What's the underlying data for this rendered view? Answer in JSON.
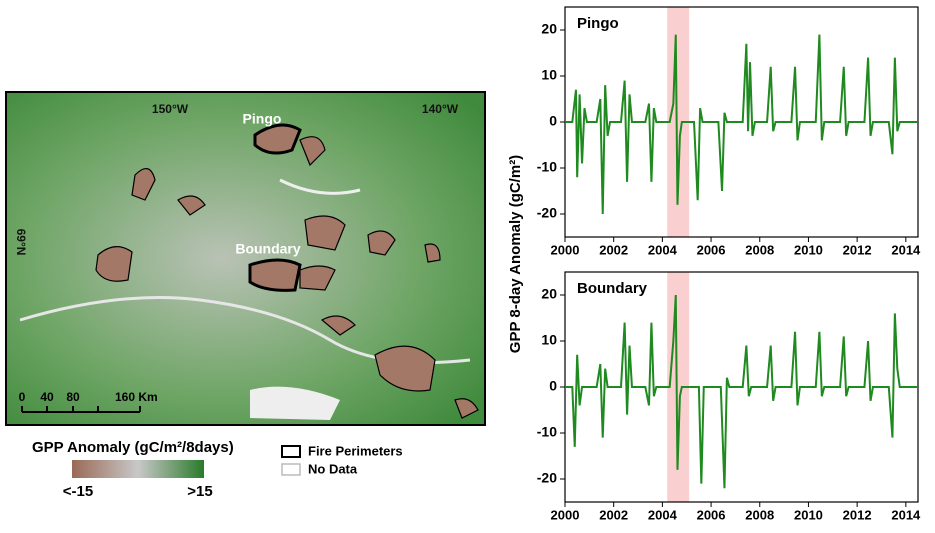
{
  "map": {
    "lon_labels": [
      "150°W",
      "140°W"
    ],
    "lat_label": "69°N",
    "sites": [
      "Pingo",
      "Boundary"
    ],
    "scale_labels": [
      "0",
      "40",
      "80",
      "160 Km"
    ],
    "legend_title": "GPP Anomaly (gC/m²/8days)",
    "colorbar_min": "<-15",
    "colorbar_max": ">15",
    "perimeter_label": "Fire Perimeters",
    "nodata_label": "No Data"
  },
  "chart_data": [
    {
      "type": "line",
      "title": "Pingo",
      "ylabel": "GPP 8-day Anomaly (gC/m²)",
      "xlim": [
        2000,
        2014.5
      ],
      "xticks": [
        2000,
        2002,
        2004,
        2006,
        2008,
        2010,
        2012,
        2014
      ],
      "ylim": [
        -25,
        25
      ],
      "yticks": [
        -20,
        -10,
        0,
        10,
        20
      ],
      "highlight": {
        "x": [
          2004.2,
          2005.1
        ],
        "color": "#f9cfcf"
      },
      "series": [
        {
          "color": "#1f8a1f",
          "x": [
            2000,
            2000.3,
            2000.45,
            2000.5,
            2000.6,
            2000.7,
            2000.8,
            2000.9,
            2001.3,
            2001.45,
            2001.55,
            2001.65,
            2001.75,
            2001.85,
            2002.3,
            2002.45,
            2002.55,
            2002.65,
            2002.75,
            2003.3,
            2003.45,
            2003.55,
            2003.65,
            2003.75,
            2004.3,
            2004.45,
            2004.55,
            2004.62,
            2004.72,
            2004.8,
            2005.3,
            2005.45,
            2005.55,
            2005.65,
            2006.3,
            2006.45,
            2006.55,
            2006.65,
            2007.3,
            2007.45,
            2007.52,
            2007.6,
            2007.7,
            2007.8,
            2008.3,
            2008.45,
            2008.55,
            2008.65,
            2009.3,
            2009.45,
            2009.55,
            2009.65,
            2010.3,
            2010.45,
            2010.55,
            2010.65,
            2011.3,
            2011.45,
            2011.55,
            2011.65,
            2012.3,
            2012.45,
            2012.55,
            2012.65,
            2013.3,
            2013.45,
            2013.55,
            2013.65,
            2013.75,
            2014.5
          ],
          "values": [
            0,
            0,
            7,
            -12,
            6,
            -9,
            3,
            0,
            0,
            5,
            -20,
            8,
            -3,
            0,
            0,
            9,
            -13,
            6,
            0,
            0,
            4,
            -13,
            3,
            0,
            0,
            4,
            19,
            -18,
            -3,
            0,
            0,
            -17,
            3,
            0,
            0,
            -15,
            2,
            0,
            0,
            17,
            -2,
            13,
            -3,
            0,
            0,
            12,
            -2,
            0,
            0,
            12,
            -4,
            0,
            0,
            19,
            -4,
            0,
            0,
            12,
            -3,
            0,
            0,
            14,
            -3,
            0,
            0,
            -7,
            14,
            -2,
            0,
            0
          ]
        }
      ]
    },
    {
      "type": "line",
      "title": "Boundary",
      "xlim": [
        2000,
        2014.5
      ],
      "xticks": [
        2000,
        2002,
        2004,
        2006,
        2008,
        2010,
        2012,
        2014
      ],
      "ylim": [
        -25,
        25
      ],
      "yticks": [
        -20,
        -10,
        0,
        10,
        20
      ],
      "highlight": {
        "x": [
          2004.2,
          2005.1
        ],
        "color": "#f9cfcf"
      },
      "series": [
        {
          "color": "#1f8a1f",
          "x": [
            2000,
            2000.3,
            2000.4,
            2000.5,
            2000.6,
            2000.7,
            2001.3,
            2001.45,
            2001.55,
            2001.65,
            2001.75,
            2002.3,
            2002.45,
            2002.55,
            2002.65,
            2002.75,
            2003.3,
            2003.45,
            2003.55,
            2003.65,
            2003.75,
            2004.3,
            2004.45,
            2004.55,
            2004.62,
            2004.72,
            2004.8,
            2005.5,
            2005.6,
            2005.7,
            2006.4,
            2006.55,
            2006.65,
            2006.75,
            2007.3,
            2007.45,
            2007.55,
            2007.65,
            2008.3,
            2008.45,
            2008.55,
            2008.65,
            2009.3,
            2009.45,
            2009.55,
            2009.65,
            2010.3,
            2010.45,
            2010.55,
            2010.65,
            2011.3,
            2011.45,
            2011.55,
            2011.65,
            2012.3,
            2012.45,
            2012.55,
            2012.65,
            2013.3,
            2013.45,
            2013.55,
            2013.65,
            2013.75,
            2014.5
          ],
          "values": [
            0,
            0,
            -13,
            7,
            -4,
            0,
            0,
            5,
            -11,
            4,
            0,
            0,
            14,
            -6,
            9,
            0,
            0,
            -4,
            14,
            -2,
            0,
            0,
            10,
            20,
            -18,
            -2,
            0,
            0,
            -21,
            0,
            0,
            -22,
            2,
            0,
            0,
            9,
            -2,
            0,
            0,
            9,
            -3,
            0,
            0,
            12,
            -4,
            0,
            0,
            12,
            -2,
            0,
            0,
            11,
            -2,
            0,
            0,
            10,
            -3,
            0,
            0,
            -11,
            16,
            4,
            0,
            0
          ]
        }
      ]
    }
  ]
}
